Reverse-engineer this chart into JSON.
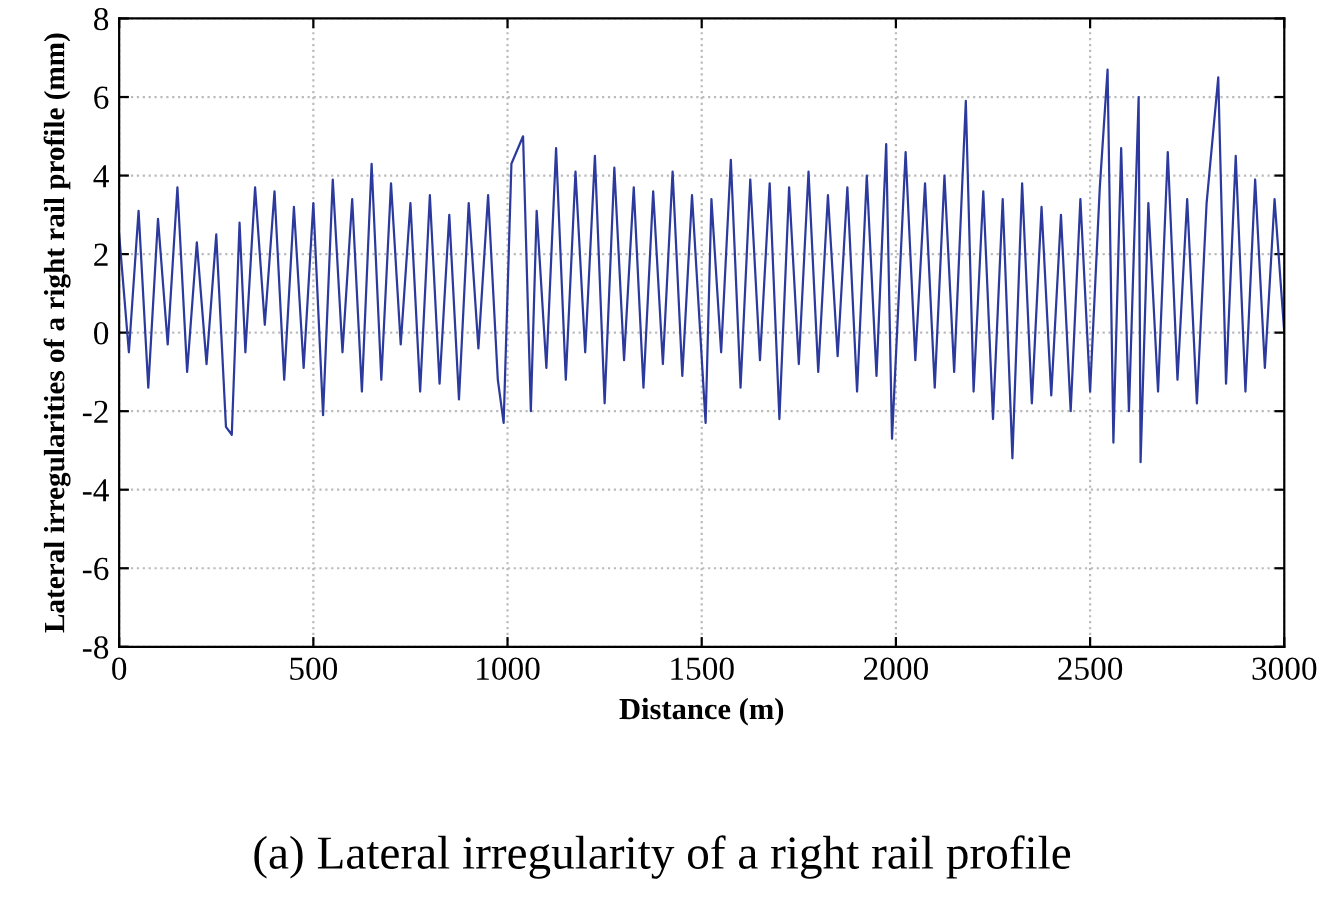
{
  "chart_data": {
    "type": "line",
    "title": "(a) Lateral irregularity of a right rail profile",
    "xlabel": "Distance (m)",
    "ylabel": "Lateral irregularities of a right rail profile (mm)",
    "xlim": [
      0,
      3000
    ],
    "ylim": [
      -8,
      8
    ],
    "xticks": [
      0,
      500,
      1000,
      1500,
      2000,
      2500,
      3000
    ],
    "yticks": [
      -8,
      -6,
      -4,
      -2,
      0,
      2,
      4,
      6,
      8
    ],
    "grid": true,
    "line_style": "solid",
    "marker": "none",
    "series": [
      {
        "color": "#2b3a9c",
        "x": [
          0,
          25,
          50,
          75,
          100,
          125,
          150,
          175,
          200,
          225,
          250,
          275,
          290,
          310,
          325,
          350,
          375,
          400,
          425,
          450,
          475,
          500,
          525,
          550,
          575,
          600,
          625,
          650,
          675,
          700,
          725,
          750,
          775,
          800,
          825,
          850,
          875,
          900,
          925,
          950,
          975,
          990,
          1010,
          1040,
          1060,
          1075,
          1100,
          1125,
          1150,
          1175,
          1200,
          1225,
          1250,
          1275,
          1300,
          1325,
          1350,
          1375,
          1400,
          1425,
          1450,
          1475,
          1510,
          1525,
          1550,
          1575,
          1600,
          1625,
          1650,
          1675,
          1700,
          1725,
          1750,
          1775,
          1800,
          1825,
          1850,
          1875,
          1900,
          1925,
          1950,
          1975,
          1990,
          2025,
          2050,
          2075,
          2100,
          2125,
          2150,
          2180,
          2200,
          2225,
          2250,
          2275,
          2300,
          2325,
          2350,
          2375,
          2400,
          2425,
          2450,
          2475,
          2500,
          2525,
          2545,
          2560,
          2580,
          2600,
          2625,
          2630,
          2650,
          2675,
          2700,
          2725,
          2750,
          2775,
          2800,
          2830,
          2850,
          2875,
          2900,
          2925,
          2950,
          2975,
          3000
        ],
        "values": [
          2.5,
          -0.5,
          3.1,
          -1.4,
          2.9,
          -0.3,
          3.7,
          -1.0,
          2.3,
          -0.8,
          2.5,
          -2.4,
          -2.6,
          2.8,
          -0.5,
          3.7,
          0.2,
          3.6,
          -1.2,
          3.2,
          -0.9,
          3.3,
          -2.1,
          3.9,
          -0.5,
          3.4,
          -1.5,
          4.3,
          -1.2,
          3.8,
          -0.3,
          3.3,
          -1.5,
          3.5,
          -1.3,
          3.0,
          -1.7,
          3.3,
          -0.4,
          3.5,
          -1.2,
          -2.3,
          4.3,
          5.0,
          -2.0,
          3.1,
          -0.9,
          4.7,
          -1.2,
          4.1,
          -0.5,
          4.5,
          -1.8,
          4.2,
          -0.7,
          3.7,
          -1.4,
          3.6,
          -0.8,
          4.1,
          -1.1,
          3.5,
          -2.3,
          3.4,
          -0.5,
          4.4,
          -1.4,
          3.9,
          -0.7,
          3.8,
          -2.2,
          3.7,
          -0.8,
          4.1,
          -1.0,
          3.5,
          -0.6,
          3.7,
          -1.5,
          4.0,
          -1.1,
          4.8,
          -2.7,
          4.6,
          -0.7,
          3.8,
          -1.4,
          4.0,
          -1.0,
          5.9,
          -1.5,
          3.6,
          -2.2,
          3.4,
          -3.2,
          3.8,
          -1.8,
          3.2,
          -1.6,
          3.0,
          -2.0,
          3.4,
          -1.5,
          3.7,
          6.7,
          -2.8,
          4.7,
          -2.0,
          6.0,
          -3.3,
          3.3,
          -1.5,
          4.6,
          -1.2,
          3.4,
          -1.8,
          3.3,
          6.5,
          -1.3,
          4.5,
          -1.5,
          3.9,
          -0.9,
          3.4,
          0.0
        ]
      }
    ]
  }
}
